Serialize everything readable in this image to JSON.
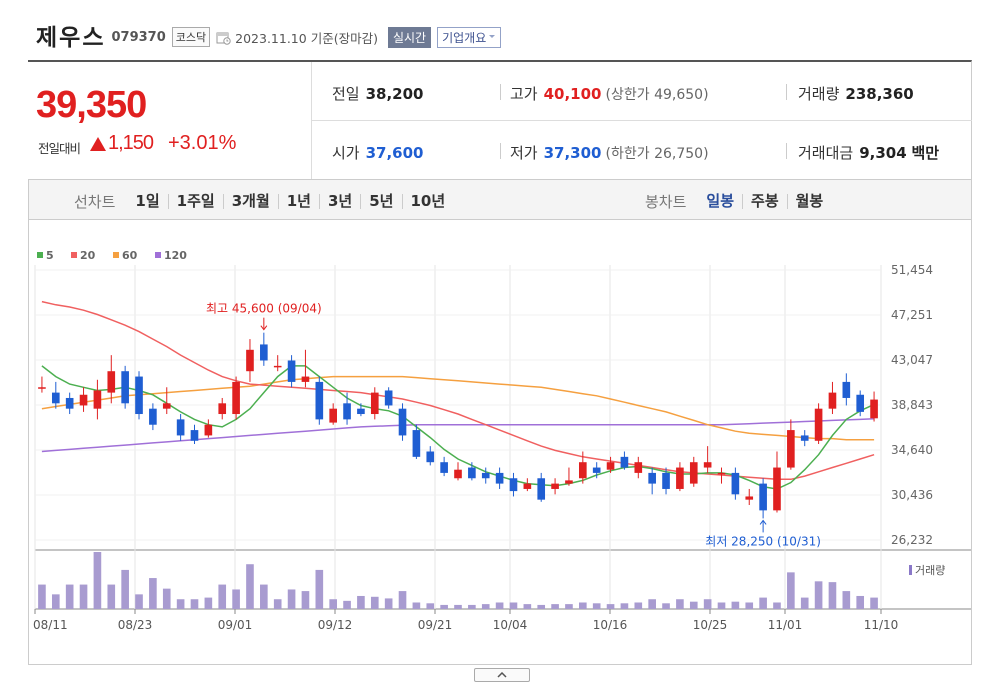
{
  "header": {
    "name": "제우스",
    "code": "079370",
    "market": "코스닥",
    "date": "2023.11.10",
    "basis": "기준(장마감)",
    "realtime_label": "실시간",
    "company_label": "기업개요"
  },
  "price": {
    "current": "39,350",
    "prev_label": "전일대비",
    "change": "1,150",
    "rate": "+3.01%"
  },
  "info": {
    "prev_close_label": "전일",
    "prev_close": "38,200",
    "high_label": "고가",
    "high": "40,100",
    "upper_limit_label": "(상한가",
    "upper_limit": "49,650",
    "close_paren": ")",
    "volume_label": "거래량",
    "volume": "238,360",
    "open_label": "시가",
    "open": "37,600",
    "low_label": "저가",
    "low": "37,300",
    "lower_limit_label": "(하한가",
    "lower_limit": "26,750",
    "amount_label": "거래대금",
    "amount": "9,304",
    "amount_unit": "백만"
  },
  "tabs": {
    "line_label": "선차트",
    "line_tabs": [
      "1일",
      "1주일",
      "3개월",
      "1년",
      "3년",
      "5년",
      "10년"
    ],
    "candle_label": "봉차트",
    "candle_tabs": [
      "일봉",
      "주봉",
      "월봉"
    ],
    "active_candle": 0
  },
  "colors": {
    "up": "#e02020",
    "down": "#1f5ed2",
    "ma5": "#4caf50",
    "ma20": "#f06060",
    "ma60": "#f5a040",
    "ma120": "#a070d8"
  },
  "chart_data": {
    "type": "candlestick",
    "legend": [
      "5",
      "20",
      "60",
      "120"
    ],
    "y_ticks": [
      "51,454",
      "47,251",
      "43,047",
      "38,843",
      "34,640",
      "30,436",
      "26,232"
    ],
    "ylim": [
      26232,
      51454
    ],
    "x_ticks": [
      "08/11",
      "08/23",
      "09/01",
      "09/12",
      "09/21",
      "10/04",
      "10/16",
      "10/25",
      "11/01",
      "11/10"
    ],
    "high_annotation": "최고 45,600 (09/04)",
    "low_annotation": "최저 28,250 (10/31)",
    "volume_label": "거래량",
    "candles": [
      {
        "o": 40500,
        "c": 40500,
        "h": 41500,
        "l": 40000
      },
      {
        "o": 40000,
        "c": 39000,
        "h": 41000,
        "l": 38500
      },
      {
        "o": 39500,
        "c": 38500,
        "h": 40000,
        "l": 38000
      },
      {
        "o": 38800,
        "c": 39800,
        "h": 40500,
        "l": 38200
      },
      {
        "o": 38500,
        "c": 40200,
        "h": 41200,
        "l": 37500
      },
      {
        "o": 40000,
        "c": 42000,
        "h": 43500,
        "l": 39000
      },
      {
        "o": 42000,
        "c": 39000,
        "h": 42500,
        "l": 38500
      },
      {
        "o": 41500,
        "c": 38000,
        "h": 42000,
        "l": 37500
      },
      {
        "o": 38500,
        "c": 37000,
        "h": 39000,
        "l": 36500
      },
      {
        "o": 38500,
        "c": 39000,
        "h": 40500,
        "l": 38000
      },
      {
        "o": 37500,
        "c": 36000,
        "h": 38000,
        "l": 35500
      },
      {
        "o": 36500,
        "c": 35500,
        "h": 37000,
        "l": 35200
      },
      {
        "o": 36000,
        "c": 37000,
        "h": 37500,
        "l": 35800
      },
      {
        "o": 38000,
        "c": 39000,
        "h": 39500,
        "l": 37500
      },
      {
        "o": 38000,
        "c": 41000,
        "h": 41500,
        "l": 37500
      },
      {
        "o": 42000,
        "c": 44000,
        "h": 45000,
        "l": 41000
      },
      {
        "o": 44500,
        "c": 43000,
        "h": 45600,
        "l": 42500
      },
      {
        "o": 42500,
        "c": 42500,
        "h": 43500,
        "l": 42000
      },
      {
        "o": 43000,
        "c": 41000,
        "h": 43500,
        "l": 40500
      },
      {
        "o": 41000,
        "c": 41500,
        "h": 44000,
        "l": 40500
      },
      {
        "o": 41000,
        "c": 37500,
        "h": 41500,
        "l": 37000
      },
      {
        "o": 37200,
        "c": 38500,
        "h": 39000,
        "l": 37000
      },
      {
        "o": 39000,
        "c": 37500,
        "h": 40000,
        "l": 37000
      },
      {
        "o": 38500,
        "c": 38000,
        "h": 39000,
        "l": 37800
      },
      {
        "o": 38000,
        "c": 40000,
        "h": 40500,
        "l": 37500
      },
      {
        "o": 40200,
        "c": 38800,
        "h": 40500,
        "l": 38500
      },
      {
        "o": 38500,
        "c": 36000,
        "h": 39000,
        "l": 35500
      },
      {
        "o": 36500,
        "c": 34000,
        "h": 37000,
        "l": 33800
      },
      {
        "o": 34500,
        "c": 33500,
        "h": 35000,
        "l": 33200
      },
      {
        "o": 33500,
        "c": 32500,
        "h": 34000,
        "l": 32200
      },
      {
        "o": 32000,
        "c": 32800,
        "h": 33500,
        "l": 31800
      },
      {
        "o": 33000,
        "c": 32000,
        "h": 33500,
        "l": 31800
      },
      {
        "o": 32500,
        "c": 32000,
        "h": 33000,
        "l": 31500
      },
      {
        "o": 32500,
        "c": 31500,
        "h": 33000,
        "l": 31000
      },
      {
        "o": 32000,
        "c": 30800,
        "h": 32500,
        "l": 30300
      },
      {
        "o": 31000,
        "c": 31500,
        "h": 32000,
        "l": 30800
      },
      {
        "o": 32000,
        "c": 30000,
        "h": 32500,
        "l": 29800
      },
      {
        "o": 31000,
        "c": 31500,
        "h": 32000,
        "l": 30500
      },
      {
        "o": 31500,
        "c": 31800,
        "h": 33000,
        "l": 31300
      },
      {
        "o": 32000,
        "c": 33500,
        "h": 34500,
        "l": 31500
      },
      {
        "o": 33000,
        "c": 32500,
        "h": 33500,
        "l": 32000
      },
      {
        "o": 32800,
        "c": 33500,
        "h": 34000,
        "l": 32500
      },
      {
        "o": 34000,
        "c": 33000,
        "h": 34500,
        "l": 32800
      },
      {
        "o": 32500,
        "c": 33500,
        "h": 34000,
        "l": 32000
      },
      {
        "o": 32500,
        "c": 31500,
        "h": 33000,
        "l": 30500
      },
      {
        "o": 32500,
        "c": 31000,
        "h": 33000,
        "l": 30500
      },
      {
        "o": 31000,
        "c": 33000,
        "h": 33500,
        "l": 30800
      },
      {
        "o": 31500,
        "c": 33500,
        "h": 34000,
        "l": 31200
      },
      {
        "o": 33000,
        "c": 33500,
        "h": 35000,
        "l": 32500
      },
      {
        "o": 32500,
        "c": 32500,
        "h": 33000,
        "l": 31500
      },
      {
        "o": 32500,
        "c": 30500,
        "h": 33000,
        "l": 30000
      },
      {
        "o": 30000,
        "c": 30300,
        "h": 31000,
        "l": 29500
      },
      {
        "o": 31500,
        "c": 29000,
        "h": 32000,
        "l": 28250
      },
      {
        "o": 29000,
        "c": 33000,
        "h": 34500,
        "l": 28800
      },
      {
        "o": 33000,
        "c": 36500,
        "h": 37500,
        "l": 32800
      },
      {
        "o": 36000,
        "c": 35500,
        "h": 36500,
        "l": 35000
      },
      {
        "o": 35500,
        "c": 38500,
        "h": 39000,
        "l": 35200
      },
      {
        "o": 38500,
        "c": 40000,
        "h": 41000,
        "l": 38000
      },
      {
        "o": 41000,
        "c": 39500,
        "h": 41800,
        "l": 38800
      },
      {
        "o": 39800,
        "c": 38200,
        "h": 40200,
        "l": 37800
      },
      {
        "o": 37600,
        "c": 39350,
        "h": 40100,
        "l": 37300
      }
    ],
    "volumes": [
      30,
      18,
      30,
      30,
      70,
      30,
      48,
      18,
      38,
      25,
      12,
      12,
      14,
      30,
      24,
      55,
      30,
      12,
      24,
      22,
      48,
      12,
      10,
      16,
      15,
      13,
      22,
      8,
      7,
      5,
      5,
      5,
      6,
      8,
      8,
      6,
      5,
      6,
      6,
      8,
      7,
      6,
      7,
      8,
      12,
      7,
      12,
      9,
      12,
      8,
      9,
      8,
      14,
      8,
      45,
      14,
      34,
      33,
      22,
      16,
      14
    ],
    "ma5": [
      42500,
      41500,
      40800,
      40500,
      40200,
      40300,
      40500,
      40200,
      39800,
      39000,
      38200,
      37500,
      37000,
      36800,
      37500,
      38500,
      40000,
      41500,
      42500,
      42500,
      41500,
      40500,
      39500,
      38800,
      38500,
      38300,
      37800,
      36800,
      35800,
      34700,
      33800,
      33200,
      32600,
      32200,
      31800,
      31500,
      31400,
      31300,
      31500,
      31800,
      32300,
      32700,
      33000,
      33100,
      32900,
      32600,
      32400,
      32400,
      32500,
      32500,
      32300,
      31800,
      31200,
      31000,
      31600,
      32800,
      34200,
      36000,
      37500,
      38300,
      38900
    ],
    "ma20": [
      48500,
      48200,
      48000,
      47700,
      47300,
      46800,
      46300,
      45700,
      45000,
      44300,
      43500,
      42800,
      42100,
      41500,
      41100,
      40800,
      40700,
      40600,
      40500,
      40400,
      40300,
      40200,
      40100,
      40000,
      39800,
      39600,
      39400,
      39100,
      38800,
      38400,
      38000,
      37500,
      37000,
      36500,
      36000,
      35500,
      35000,
      34600,
      34300,
      34000,
      33800,
      33600,
      33400,
      33200,
      33000,
      32800,
      32600,
      32500,
      32400,
      32300,
      32200,
      32100,
      32000,
      31900,
      31900,
      32200,
      32600,
      33000,
      33400,
      33800,
      34200
    ],
    "ma60": [
      38500,
      38700,
      38900,
      39100,
      39300,
      39500,
      39700,
      39800,
      39900,
      40000,
      40100,
      40200,
      40300,
      40400,
      40500,
      40600,
      40800,
      41000,
      41200,
      41300,
      41400,
      41500,
      41500,
      41500,
      41500,
      41500,
      41500,
      41400,
      41300,
      41200,
      41100,
      41000,
      40900,
      40800,
      40700,
      40600,
      40500,
      40300,
      40100,
      39900,
      39700,
      39400,
      39100,
      38800,
      38500,
      38200,
      37800,
      37400,
      37000,
      36700,
      36400,
      36200,
      36100,
      36000,
      35900,
      35800,
      35700,
      35700,
      35600,
      35600,
      35600
    ],
    "ma120": [
      34500,
      34600,
      34700,
      34800,
      34900,
      35000,
      35100,
      35200,
      35300,
      35400,
      35500,
      35600,
      35700,
      35800,
      35900,
      36000,
      36100,
      36200,
      36300,
      36400,
      36500,
      36600,
      36700,
      36800,
      36850,
      36900,
      36950,
      37000,
      37000,
      37000,
      37000,
      37000,
      37000,
      37000,
      37000,
      37000,
      37000,
      37000,
      37000,
      37000,
      37000,
      37000,
      37000,
      37000,
      37000,
      37000,
      37000,
      37000,
      37000,
      37000,
      37050,
      37100,
      37150,
      37200,
      37250,
      37300,
      37350,
      37400,
      37450,
      37500,
      37550
    ]
  }
}
